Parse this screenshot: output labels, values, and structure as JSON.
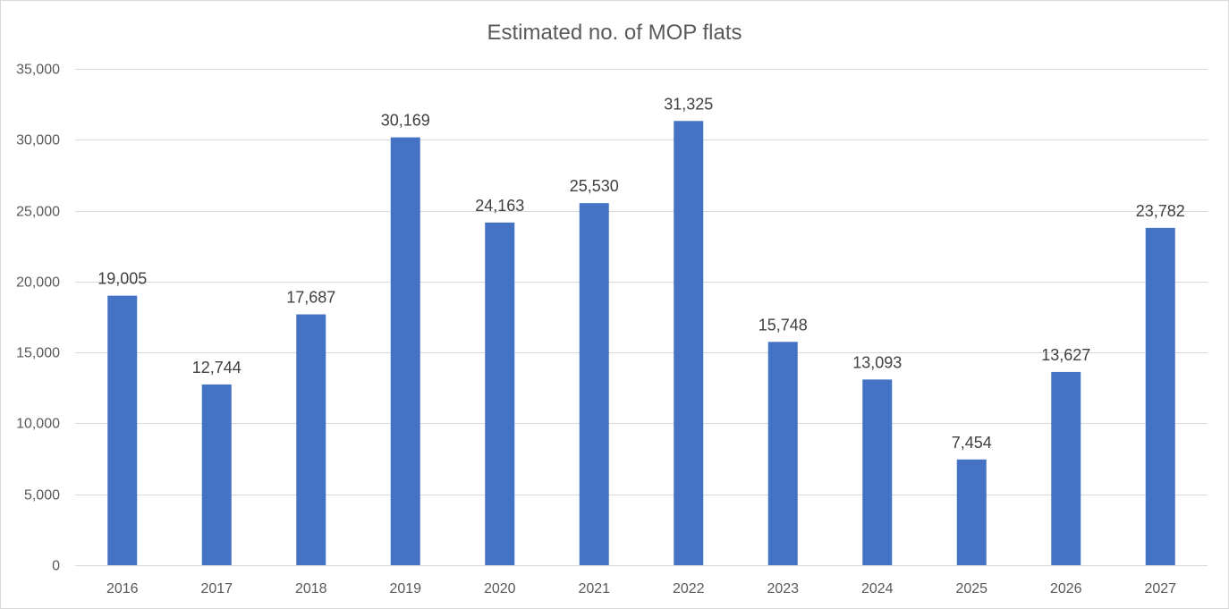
{
  "chart_data": {
    "type": "bar",
    "title": "Estimated no. of MOP flats",
    "xlabel": "",
    "ylabel": "",
    "categories": [
      "2016",
      "2017",
      "2018",
      "2019",
      "2020",
      "2021",
      "2022",
      "2023",
      "2024",
      "2025",
      "2026",
      "2027"
    ],
    "values": [
      19005,
      12744,
      17687,
      30169,
      24163,
      25530,
      31325,
      15748,
      13093,
      7454,
      13627,
      23782
    ],
    "value_labels": [
      "19,005",
      "12,744",
      "17,687",
      "30,169",
      "24,163",
      "25,530",
      "31,325",
      "15,748",
      "13,093",
      "7,454",
      "13,627",
      "23,782"
    ],
    "ylim": [
      0,
      35000
    ],
    "yticks": [
      0,
      5000,
      10000,
      15000,
      20000,
      25000,
      30000,
      35000
    ],
    "ytick_labels": [
      "0",
      "5,000",
      "10,000",
      "15,000",
      "20,000",
      "25,000",
      "30,000",
      "35,000"
    ],
    "grid": true,
    "legend": "none",
    "bar_color": "#4472c4",
    "grid_color": "#d9d9d9"
  }
}
